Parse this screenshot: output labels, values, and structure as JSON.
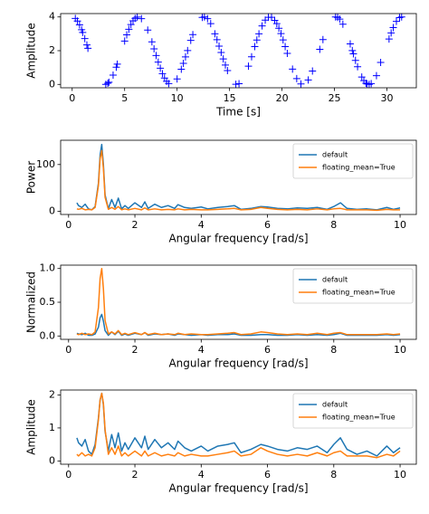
{
  "chart_data": [
    {
      "type": "scatter",
      "xlabel": "Time [s]",
      "ylabel": "Amplitude",
      "color": "#0000ff",
      "marker": "+",
      "xlim": [
        -1.1,
        32.8
      ],
      "ylim": [
        -0.2,
        4.2
      ],
      "xticks": [
        0,
        5,
        10,
        15,
        20,
        25,
        30
      ],
      "yticks": [
        0,
        2,
        4
      ],
      "x": [
        0.3,
        0.5,
        0.7,
        0.9,
        1.0,
        1.2,
        1.4,
        1.5,
        3.2,
        3.4,
        3.5,
        3.9,
        4.2,
        4.3,
        5.0,
        5.2,
        5.4,
        5.6,
        5.8,
        6.0,
        6.2,
        6.6,
        7.2,
        7.6,
        7.8,
        8.0,
        8.2,
        8.4,
        8.6,
        8.8,
        9.0,
        9.2,
        10.0,
        10.4,
        10.6,
        10.8,
        11.0,
        11.3,
        11.5,
        12.4,
        12.6,
        12.9,
        13.2,
        13.6,
        13.8,
        14.0,
        14.2,
        14.4,
        14.6,
        14.8,
        15.6,
        15.9,
        16.8,
        17.1,
        17.4,
        17.6,
        17.8,
        18.1,
        18.4,
        18.7,
        19.0,
        19.3,
        19.5,
        19.7,
        19.9,
        20.1,
        20.3,
        20.5,
        21.0,
        21.4,
        21.8,
        22.5,
        22.9,
        23.6,
        23.9,
        25.1,
        25.3,
        25.5,
        25.8,
        26.5,
        26.7,
        26.8,
        27.0,
        27.2,
        27.6,
        27.8,
        28.0,
        28.1,
        28.3,
        28.5,
        29.0,
        29.4,
        30.2,
        30.4,
        30.6,
        30.9,
        31.2,
        31.4
      ],
      "values": [
        3.91,
        3.76,
        3.53,
        3.24,
        3.08,
        2.72,
        2.34,
        2.14,
        0.0,
        0.07,
        0.13,
        0.55,
        1.02,
        1.2,
        2.57,
        2.94,
        3.27,
        3.55,
        3.77,
        3.92,
        3.99,
        3.9,
        3.22,
        2.52,
        2.11,
        1.71,
        1.32,
        0.96,
        0.64,
        0.38,
        0.18,
        0.05,
        0.32,
        0.9,
        1.25,
        1.63,
        2.01,
        2.61,
        2.95,
        3.97,
        4.0,
        3.9,
        3.6,
        3.0,
        2.65,
        2.27,
        1.89,
        1.51,
        1.15,
        0.82,
        0.01,
        0.04,
        1.08,
        1.64,
        2.24,
        2.63,
        3.0,
        3.47,
        3.81,
        3.98,
        3.98,
        3.8,
        3.6,
        3.33,
        3.01,
        2.64,
        2.24,
        1.84,
        0.91,
        0.34,
        0.03,
        0.26,
        0.79,
        2.08,
        2.66,
        4.0,
        3.97,
        3.87,
        3.57,
        2.4,
        2.01,
        1.81,
        1.42,
        1.05,
        0.44,
        0.22,
        0.07,
        0.03,
        0.0,
        0.05,
        0.52,
        1.3,
        2.69,
        3.05,
        3.37,
        3.74,
        3.96,
        4.0
      ]
    },
    {
      "type": "line",
      "xlabel": "Angular frequency [rad/s]",
      "ylabel": "Power",
      "legend": "upper right",
      "xlim": [
        -0.24,
        10.49
      ],
      "ylim": [
        -7,
        152
      ],
      "xticks": [
        0,
        2,
        4,
        6,
        8,
        10
      ],
      "yticks": [
        0,
        100
      ],
      "x": [
        0.25,
        0.3,
        0.4,
        0.5,
        0.6,
        0.7,
        0.8,
        0.9,
        0.95,
        1.0,
        1.05,
        1.1,
        1.2,
        1.3,
        1.4,
        1.5,
        1.6,
        1.7,
        1.8,
        2.0,
        2.2,
        2.3,
        2.4,
        2.6,
        2.8,
        3.0,
        3.2,
        3.3,
        3.5,
        3.7,
        4.0,
        4.2,
        4.5,
        4.8,
        5.0,
        5.2,
        5.5,
        5.8,
        6.0,
        6.3,
        6.6,
        6.9,
        7.2,
        7.5,
        7.8,
        8.0,
        8.2,
        8.4,
        8.7,
        9.0,
        9.3,
        9.6,
        9.8,
        10.0
      ],
      "series": [
        {
          "name": "default",
          "color": "#1f77b4",
          "values": [
            18,
            12,
            8,
            15,
            5,
            3,
            10,
            60,
            120,
            143,
            100,
            35,
            5,
            25,
            8,
            28,
            5,
            12,
            6,
            18,
            8,
            20,
            6,
            15,
            8,
            12,
            6,
            14,
            8,
            6,
            9,
            5,
            8,
            10,
            12,
            4,
            6,
            10,
            9,
            6,
            5,
            7,
            6,
            8,
            4,
            10,
            18,
            6,
            4,
            5,
            3,
            8,
            4,
            7
          ]
        },
        {
          "name": "floating_mean=True",
          "color": "#ff7f0e",
          "values": [
            5,
            4,
            6,
            3,
            4,
            3,
            8,
            55,
            112,
            130,
            92,
            30,
            4,
            8,
            4,
            10,
            3,
            5,
            3,
            6,
            3,
            7,
            3,
            5,
            3,
            4,
            3,
            5,
            3,
            4,
            3,
            3,
            4,
            5,
            6,
            3,
            4,
            8,
            6,
            4,
            3,
            4,
            3,
            5,
            3,
            5,
            6,
            3,
            3,
            3,
            2,
            4,
            3,
            3
          ]
        }
      ]
    },
    {
      "type": "line",
      "xlabel": "Angular frequency [rad/s]",
      "ylabel": "Normalized",
      "legend": "upper right",
      "xlim": [
        -0.24,
        10.49
      ],
      "ylim": [
        -0.05,
        1.05
      ],
      "xticks": [
        0,
        2,
        4,
        6,
        8,
        10
      ],
      "yticks": [
        {
          "value": 0,
          "label": "0.0"
        },
        {
          "value": 0.5,
          "label": "0.5"
        },
        {
          "value": 1,
          "label": "1.0"
        }
      ],
      "x": [
        0.25,
        0.3,
        0.4,
        0.5,
        0.6,
        0.7,
        0.8,
        0.9,
        0.95,
        1.0,
        1.05,
        1.1,
        1.2,
        1.3,
        1.4,
        1.5,
        1.6,
        1.7,
        1.8,
        2.0,
        2.2,
        2.3,
        2.4,
        2.6,
        2.8,
        3.0,
        3.2,
        3.3,
        3.5,
        3.7,
        4.0,
        4.2,
        4.5,
        4.8,
        5.0,
        5.2,
        5.5,
        5.8,
        6.0,
        6.3,
        6.6,
        6.9,
        7.2,
        7.5,
        7.8,
        8.0,
        8.2,
        8.4,
        8.7,
        9.0,
        9.3,
        9.6,
        9.8,
        10.0
      ],
      "series": [
        {
          "name": "default",
          "color": "#1f77b4",
          "values": [
            0.04,
            0.03,
            0.02,
            0.04,
            0.01,
            0.01,
            0.03,
            0.13,
            0.27,
            0.32,
            0.22,
            0.08,
            0.01,
            0.06,
            0.02,
            0.07,
            0.01,
            0.03,
            0.01,
            0.04,
            0.02,
            0.05,
            0.01,
            0.03,
            0.02,
            0.03,
            0.01,
            0.03,
            0.02,
            0.01,
            0.02,
            0.01,
            0.02,
            0.02,
            0.03,
            0.01,
            0.01,
            0.02,
            0.02,
            0.01,
            0.01,
            0.02,
            0.01,
            0.02,
            0.01,
            0.02,
            0.04,
            0.01,
            0.01,
            0.01,
            0.01,
            0.02,
            0.01,
            0.02
          ]
        },
        {
          "name": "floating_mean=True",
          "color": "#ff7f0e",
          "values": [
            0.03,
            0.02,
            0.04,
            0.02,
            0.03,
            0.02,
            0.06,
            0.42,
            0.85,
            1.0,
            0.7,
            0.23,
            0.03,
            0.06,
            0.03,
            0.08,
            0.02,
            0.04,
            0.02,
            0.05,
            0.02,
            0.05,
            0.02,
            0.04,
            0.02,
            0.03,
            0.02,
            0.04,
            0.02,
            0.03,
            0.02,
            0.02,
            0.03,
            0.04,
            0.05,
            0.02,
            0.03,
            0.06,
            0.05,
            0.03,
            0.02,
            0.03,
            0.02,
            0.04,
            0.02,
            0.04,
            0.05,
            0.02,
            0.02,
            0.02,
            0.02,
            0.03,
            0.02,
            0.03
          ]
        }
      ]
    },
    {
      "type": "line",
      "xlabel": "Angular frequency [rad/s]",
      "ylabel": "Amplitude",
      "legend": "upper right",
      "xlim": [
        -0.24,
        10.49
      ],
      "ylim": [
        -0.1,
        2.15
      ],
      "xticks": [
        0,
        2,
        4,
        6,
        8,
        10
      ],
      "yticks": [
        0,
        1,
        2
      ],
      "x": [
        0.25,
        0.3,
        0.4,
        0.5,
        0.6,
        0.7,
        0.8,
        0.9,
        0.95,
        1.0,
        1.05,
        1.1,
        1.2,
        1.3,
        1.4,
        1.5,
        1.6,
        1.7,
        1.8,
        2.0,
        2.2,
        2.3,
        2.4,
        2.6,
        2.8,
        3.0,
        3.2,
        3.3,
        3.5,
        3.7,
        4.0,
        4.2,
        4.5,
        4.8,
        5.0,
        5.2,
        5.5,
        5.8,
        6.0,
        6.3,
        6.6,
        6.9,
        7.2,
        7.5,
        7.8,
        8.0,
        8.2,
        8.4,
        8.7,
        9.0,
        9.3,
        9.6,
        9.8,
        10.0
      ],
      "series": [
        {
          "name": "default",
          "color": "#1f77b4",
          "values": [
            0.7,
            0.55,
            0.45,
            0.65,
            0.3,
            0.2,
            0.5,
            1.3,
            1.85,
            2.05,
            1.7,
            0.9,
            0.3,
            0.8,
            0.4,
            0.85,
            0.3,
            0.55,
            0.35,
            0.7,
            0.4,
            0.75,
            0.35,
            0.65,
            0.4,
            0.55,
            0.35,
            0.6,
            0.4,
            0.3,
            0.45,
            0.3,
            0.45,
            0.5,
            0.55,
            0.25,
            0.35,
            0.5,
            0.45,
            0.35,
            0.3,
            0.4,
            0.35,
            0.45,
            0.25,
            0.5,
            0.7,
            0.35,
            0.2,
            0.3,
            0.15,
            0.45,
            0.25,
            0.4
          ]
        },
        {
          "name": "floating_mean=True",
          "color": "#ff7f0e",
          "values": [
            0.2,
            0.15,
            0.25,
            0.15,
            0.2,
            0.15,
            0.4,
            1.25,
            1.85,
            2.05,
            1.75,
            0.95,
            0.2,
            0.4,
            0.2,
            0.45,
            0.15,
            0.25,
            0.15,
            0.3,
            0.15,
            0.3,
            0.15,
            0.25,
            0.15,
            0.2,
            0.15,
            0.25,
            0.15,
            0.2,
            0.15,
            0.15,
            0.2,
            0.25,
            0.3,
            0.15,
            0.2,
            0.4,
            0.3,
            0.2,
            0.15,
            0.2,
            0.15,
            0.25,
            0.15,
            0.25,
            0.3,
            0.15,
            0.15,
            0.15,
            0.1,
            0.2,
            0.15,
            0.3
          ]
        }
      ]
    }
  ]
}
